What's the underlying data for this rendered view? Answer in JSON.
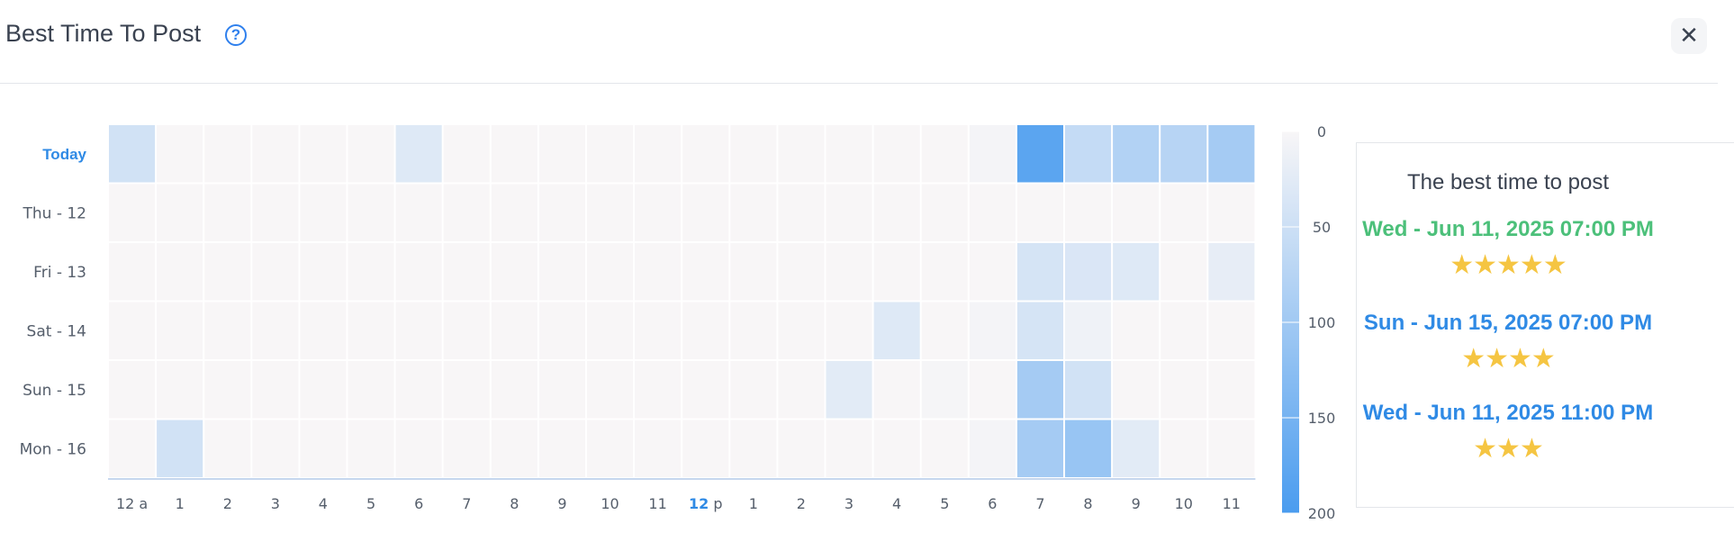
{
  "header": {
    "title": "Best Time To Post",
    "help_icon": "question-circle-icon",
    "close_icon": "close-icon",
    "close_glyph": "✕"
  },
  "chart_data": {
    "type": "heatmap",
    "title": "",
    "rows": [
      "Today",
      "Thu - 12",
      "Fri - 13",
      "Sat - 14",
      "Sun - 15",
      "Mon - 16"
    ],
    "columns": [
      "12 a",
      "1",
      "2",
      "3",
      "4",
      "5",
      "6",
      "7",
      "8",
      "9",
      "10",
      "11",
      "12 p",
      "1",
      "2",
      "3",
      "4",
      "5",
      "6",
      "7",
      "8",
      "9",
      "10",
      "11"
    ],
    "values": [
      [
        45,
        0,
        0,
        0,
        0,
        0,
        30,
        0,
        0,
        0,
        0,
        0,
        0,
        0,
        0,
        0,
        0,
        0,
        5,
        180,
        60,
        80,
        75,
        95
      ],
      [
        0,
        0,
        0,
        0,
        0,
        0,
        0,
        0,
        0,
        0,
        0,
        0,
        0,
        0,
        0,
        0,
        0,
        0,
        0,
        0,
        0,
        0,
        0,
        0
      ],
      [
        0,
        0,
        0,
        0,
        0,
        0,
        0,
        0,
        0,
        0,
        0,
        0,
        0,
        0,
        0,
        0,
        0,
        0,
        0,
        40,
        35,
        30,
        0,
        20
      ],
      [
        0,
        0,
        0,
        0,
        0,
        0,
        0,
        0,
        0,
        0,
        0,
        0,
        0,
        0,
        0,
        0,
        30,
        0,
        5,
        40,
        10,
        0,
        0,
        0
      ],
      [
        0,
        0,
        0,
        0,
        0,
        0,
        0,
        0,
        0,
        0,
        0,
        0,
        0,
        0,
        0,
        25,
        0,
        3,
        0,
        95,
        45,
        0,
        0,
        0
      ],
      [
        0,
        45,
        0,
        0,
        0,
        0,
        0,
        0,
        0,
        0,
        0,
        0,
        0,
        0,
        0,
        0,
        0,
        0,
        5,
        95,
        110,
        25,
        0,
        0
      ]
    ],
    "highlight_row": "Today",
    "highlight_column": "12 p",
    "scale": {
      "min": 0,
      "max": 200,
      "ticks": [
        0,
        50,
        100,
        150,
        200
      ],
      "color_low": "#f8f6f7",
      "color_high": "#4a9cef"
    },
    "colors": {
      "accent": "#2f8ae5",
      "grid_bg": "#f8f6f7"
    }
  },
  "best_times": {
    "title": "The best time to post",
    "items": [
      {
        "text": "Wed - Jun 11, 2025 07:00 PM",
        "rating": 5,
        "stars": "★★★★★",
        "color": "#4cc07a"
      },
      {
        "text": "Sun - Jun 15, 2025 07:00 PM",
        "rating": 4,
        "stars": "★★★★",
        "color": "#2f8ae5"
      },
      {
        "text": "Wed - Jun 11, 2025 11:00 PM",
        "rating": 3,
        "stars": "★★★",
        "color": "#2f8ae5"
      }
    ]
  }
}
